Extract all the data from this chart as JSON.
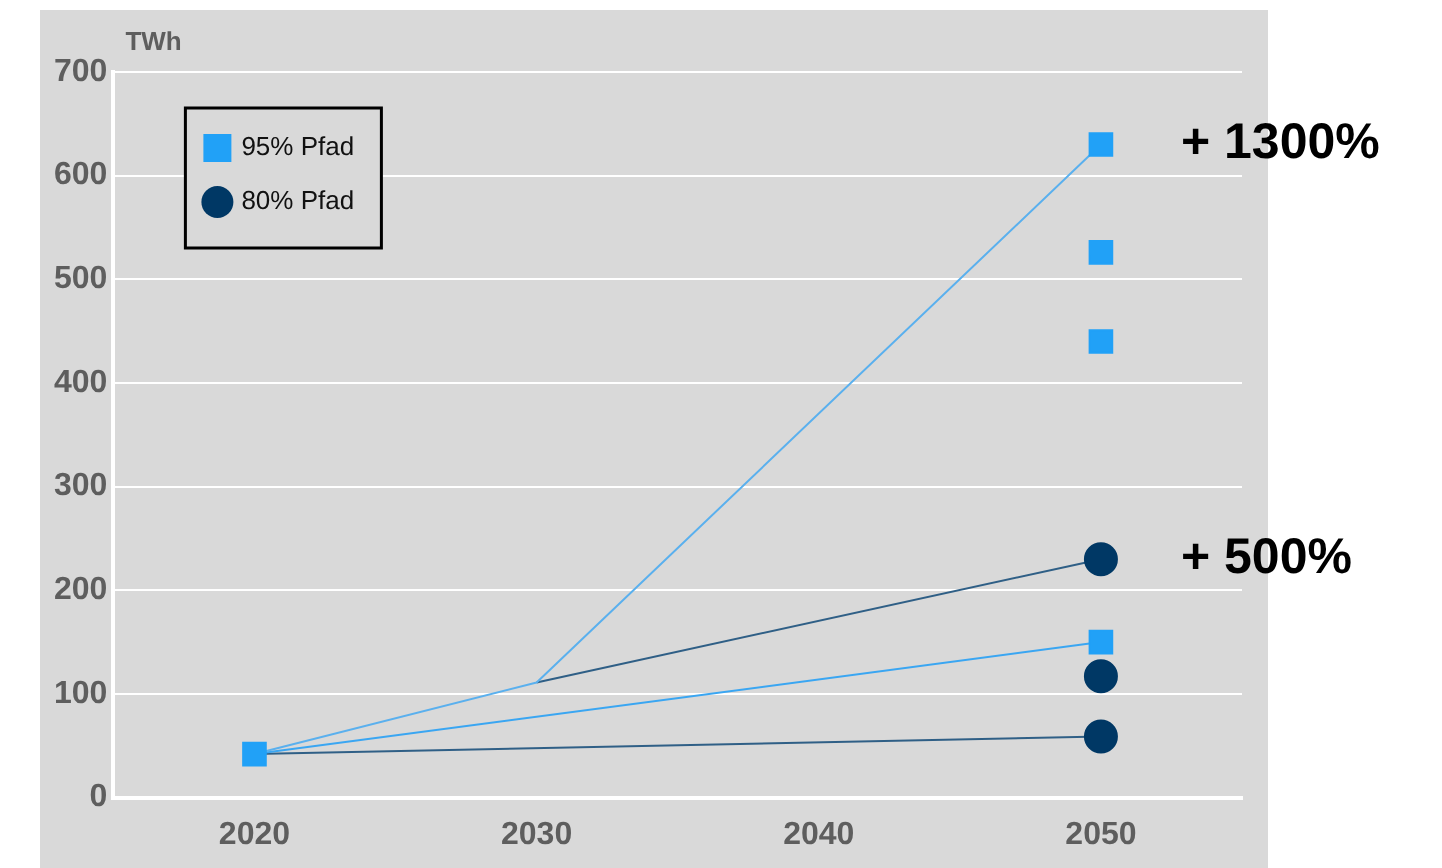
{
  "chart_data": {
    "type": "line",
    "ylabel": "TWh",
    "xlim": [
      2015,
      2055
    ],
    "xticks": [
      2020,
      2030,
      2040,
      2050
    ],
    "ylim": [
      0,
      700
    ],
    "yticks": [
      0,
      100,
      200,
      300,
      400,
      500,
      600,
      700
    ],
    "grid": "y",
    "legend": "top left",
    "series": [
      {
        "type": "line",
        "color": "#5ab0ee",
        "marker": "none",
        "x": [
          2020,
          2030,
          2050
        ],
        "values": [
          42,
          111,
          630
        ]
      },
      {
        "type": "line",
        "color": "#2f5f86",
        "marker": "none",
        "x": [
          2030,
          2050
        ],
        "values": [
          111,
          230
        ]
      },
      {
        "type": "line",
        "color": "#3aa6f2",
        "marker": "none",
        "x": [
          2020,
          2050
        ],
        "values": [
          42,
          150
        ]
      },
      {
        "type": "line",
        "color": "#2f5f86",
        "marker": "none",
        "x": [
          2020,
          2050
        ],
        "values": [
          42,
          59
        ]
      },
      {
        "type": "scatter",
        "name": "95% Pfad",
        "color": "#21a1f7",
        "marker": "square",
        "x": [
          2020,
          2050,
          2050,
          2050,
          2050
        ],
        "values": [
          42,
          630,
          526,
          440,
          150
        ]
      },
      {
        "type": "scatter",
        "name": "80% Pfad",
        "color": "#003865",
        "marker": "circle",
        "x": [
          2050,
          2050,
          2050
        ],
        "values": [
          230,
          117,
          59
        ]
      }
    ],
    "annotations": [
      {
        "text": "+ 1300%",
        "x": 2050,
        "y": 630
      },
      {
        "text": "+ 500%",
        "x": 2050,
        "y": 230
      }
    ]
  }
}
